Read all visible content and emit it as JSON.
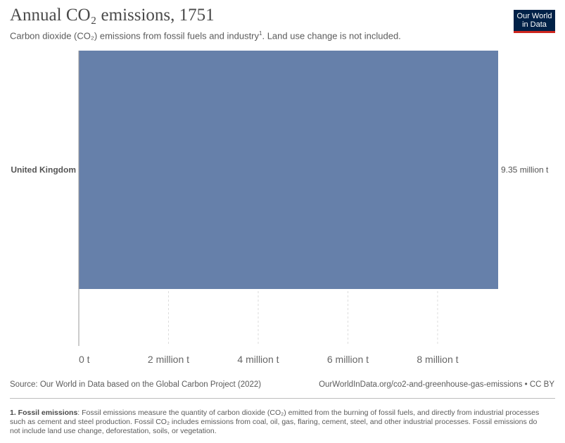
{
  "header": {
    "title": "Annual CO₂ emissions, 1751",
    "subtitle_text": "Carbon dioxide (CO₂) emissions from fossil fuels and industry",
    "subtitle_note_ref": "1",
    "subtitle_tail": ". Land use change is not included."
  },
  "logo": {
    "line1": "Our World",
    "line2": "in Data"
  },
  "colors": {
    "bar": "#6680aa",
    "logo_bg": "#002147",
    "logo_accent": "#ce261e"
  },
  "chart_data": {
    "type": "bar",
    "orientation": "horizontal",
    "categories": [
      "United Kingdom"
    ],
    "values": [
      9.35
    ],
    "value_labels": [
      "9.35 million t"
    ],
    "xlim": [
      0,
      9.35
    ],
    "xticks": [
      0,
      2,
      4,
      6,
      8
    ],
    "xtick_labels": [
      "0 t",
      "2 million t",
      "4 million t",
      "6 million t",
      "8 million t"
    ],
    "grid": "vertical dashed"
  },
  "footer": {
    "source": "Source: Our World in Data based on the Global Carbon Project (2022)",
    "url": "OurWorldInData.org/co2-and-greenhouse-gas-emissions • CC BY",
    "footnote_label": "1. Fossil emissions",
    "footnote_text": ": Fossil emissions measure the quantity of carbon dioxide (CO₂) emitted from the burning of fossil fuels, and directly from industrial processes such as cement and steel production. Fossil CO₂ includes emissions from coal, oil, gas, flaring, cement, steel, and other industrial processes. Fossil emissions do not include land use change, deforestation, soils, or vegetation."
  }
}
